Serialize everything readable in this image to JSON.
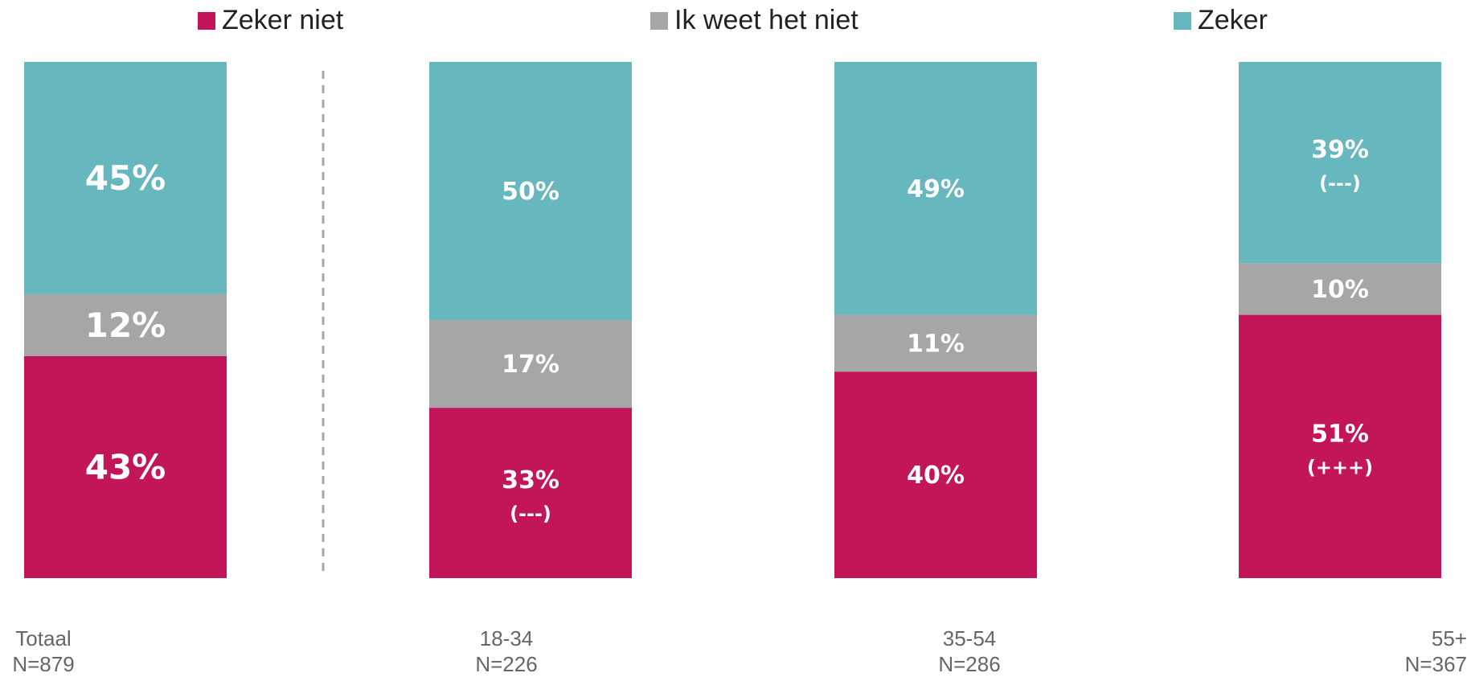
{
  "legend": {
    "items": [
      {
        "label": "Zeker niet",
        "color": "#C2155A"
      },
      {
        "label": "Ik weet het niet",
        "color": "#A6A6A6"
      },
      {
        "label": "Zeker",
        "color": "#66B8BE"
      }
    ]
  },
  "chart_data": {
    "type": "bar",
    "stacked": true,
    "ylim": [
      0,
      100
    ],
    "categories": [
      "Totaal",
      "18-34",
      "35-54",
      "55+"
    ],
    "sample_sizes": [
      "N=879",
      "N=226",
      "N=286",
      "N=367"
    ],
    "series": [
      {
        "name": "Zeker niet",
        "color": "#C2155A",
        "values": [
          43,
          33,
          40,
          51
        ],
        "labels": [
          "43%",
          "33%",
          "40%",
          "51%"
        ],
        "significance": [
          "",
          "(---)",
          "",
          "(+++)"
        ]
      },
      {
        "name": "Ik weet het niet",
        "color": "#A6A6A6",
        "values": [
          12,
          17,
          11,
          10
        ],
        "labels": [
          "12%",
          "17%",
          "11%",
          "10%"
        ],
        "significance": [
          "",
          "",
          "",
          ""
        ]
      },
      {
        "name": "Zeker",
        "color": "#66B8BE",
        "values": [
          45,
          50,
          49,
          39
        ],
        "labels": [
          "45%",
          "50%",
          "49%",
          "39%"
        ],
        "significance": [
          "",
          "",
          "",
          "(---)"
        ]
      }
    ],
    "separator_after_category": 0
  }
}
